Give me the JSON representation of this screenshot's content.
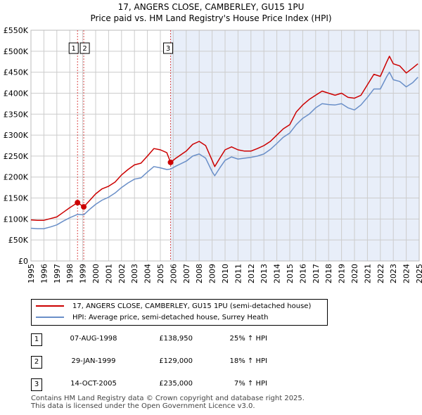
{
  "title_line1": "17, ANGERS CLOSE, CAMBERLEY, GU15 1PU",
  "title_line2": "Price paid vs. HM Land Registry's House Price Index (HPI)",
  "colors": {
    "property": "#cc0000",
    "hpi": "#6a8fc8",
    "shade": "#e8eef9",
    "marker_line": "#cc0000",
    "grid": "#cccccc"
  },
  "legend": {
    "property_label": "17, ANGERS CLOSE, CAMBERLEY, GU15 1PU (semi-detached house)",
    "hpi_label": "HPI: Average price, semi-detached house, Surrey Heath"
  },
  "sales": [
    {
      "num": "1",
      "date": "07-AUG-1998",
      "price": "£138,950",
      "hpi": "25% ↑ HPI"
    },
    {
      "num": "2",
      "date": "29-JAN-1999",
      "price": "£129,000",
      "hpi": "18% ↑ HPI"
    },
    {
      "num": "3",
      "date": "14-OCT-2005",
      "price": "£235,000",
      "hpi": "7% ↑ HPI"
    }
  ],
  "footer_line1": "Contains HM Land Registry data © Crown copyright and database right 2025.",
  "footer_line2": "This data is licensed under the Open Government Licence v3.0.",
  "chart_data": {
    "type": "line",
    "title": "17, ANGERS CLOSE, CAMBERLEY, GU15 1PU",
    "subtitle": "Price paid vs. HM Land Registry's House Price Index (HPI)",
    "xlabel": "",
    "ylabel": "",
    "xlim": [
      1995,
      2025
    ],
    "ylim": [
      0,
      550000
    ],
    "grid": true,
    "legend_position": "bottom",
    "x_ticks": [
      1995,
      1996,
      1997,
      1998,
      1999,
      2000,
      2001,
      2002,
      2003,
      2004,
      2005,
      2006,
      2007,
      2008,
      2009,
      2010,
      2011,
      2012,
      2013,
      2014,
      2015,
      2016,
      2017,
      2018,
      2019,
      2020,
      2021,
      2022,
      2023,
      2024,
      2025
    ],
    "y_ticks": [
      {
        "value": 0,
        "label": "£0"
      },
      {
        "value": 50000,
        "label": "£50K"
      },
      {
        "value": 100000,
        "label": "£100K"
      },
      {
        "value": 150000,
        "label": "£150K"
      },
      {
        "value": 200000,
        "label": "£200K"
      },
      {
        "value": 250000,
        "label": "£250K"
      },
      {
        "value": 300000,
        "label": "£300K"
      },
      {
        "value": 350000,
        "label": "£350K"
      },
      {
        "value": 400000,
        "label": "£400K"
      },
      {
        "value": 450000,
        "label": "£450K"
      },
      {
        "value": 500000,
        "label": "£500K"
      },
      {
        "value": 550000,
        "label": "£550K"
      }
    ],
    "shaded_from": 2005.79,
    "markers": [
      {
        "label": "1",
        "x": 1998.6,
        "y": 138950
      },
      {
        "label": "2",
        "x": 1999.08,
        "y": 129000
      },
      {
        "label": "3",
        "x": 2005.79,
        "y": 235000
      }
    ],
    "series": [
      {
        "name": "17, ANGERS CLOSE, CAMBERLEY, GU15 1PU (semi-detached house)",
        "points": [
          [
            1995,
            98000
          ],
          [
            1995.5,
            97000
          ],
          [
            1996,
            97000
          ],
          [
            1996.5,
            101000
          ],
          [
            1997,
            105000
          ],
          [
            1997.5,
            116000
          ],
          [
            1998,
            127000
          ],
          [
            1998.6,
            138950
          ],
          [
            1999.08,
            129000
          ],
          [
            1999.5,
            143000
          ],
          [
            2000,
            160000
          ],
          [
            2000.5,
            172000
          ],
          [
            2001,
            178000
          ],
          [
            2001.5,
            188000
          ],
          [
            2002,
            205000
          ],
          [
            2002.5,
            218000
          ],
          [
            2003,
            229000
          ],
          [
            2003.5,
            233000
          ],
          [
            2004,
            250000
          ],
          [
            2004.5,
            268000
          ],
          [
            2005,
            265000
          ],
          [
            2005.5,
            258000
          ],
          [
            2005.79,
            235000
          ],
          [
            2006.2,
            245000
          ],
          [
            2007,
            262000
          ],
          [
            2007.5,
            278000
          ],
          [
            2008,
            285000
          ],
          [
            2008.5,
            275000
          ],
          [
            2009,
            240000
          ],
          [
            2009.2,
            225000
          ],
          [
            2009.6,
            245000
          ],
          [
            2010,
            265000
          ],
          [
            2010.5,
            272000
          ],
          [
            2011,
            265000
          ],
          [
            2011.5,
            262000
          ],
          [
            2012,
            262000
          ],
          [
            2012.5,
            268000
          ],
          [
            2013,
            275000
          ],
          [
            2013.5,
            285000
          ],
          [
            2014,
            300000
          ],
          [
            2014.5,
            315000
          ],
          [
            2015,
            325000
          ],
          [
            2015.5,
            355000
          ],
          [
            2016,
            372000
          ],
          [
            2016.5,
            385000
          ],
          [
            2017,
            395000
          ],
          [
            2017.5,
            405000
          ],
          [
            2018,
            400000
          ],
          [
            2018.5,
            395000
          ],
          [
            2019,
            400000
          ],
          [
            2019.5,
            390000
          ],
          [
            2020,
            388000
          ],
          [
            2020.5,
            395000
          ],
          [
            2021,
            420000
          ],
          [
            2021.5,
            445000
          ],
          [
            2022,
            440000
          ],
          [
            2022.5,
            475000
          ],
          [
            2022.7,
            488000
          ],
          [
            2023,
            470000
          ],
          [
            2023.5,
            465000
          ],
          [
            2024,
            448000
          ],
          [
            2024.5,
            460000
          ],
          [
            2024.9,
            470000
          ]
        ]
      },
      {
        "name": "HPI: Average price, semi-detached house, Surrey Heath",
        "points": [
          [
            1995,
            78000
          ],
          [
            1995.5,
            77000
          ],
          [
            1996,
            77000
          ],
          [
            1996.5,
            81000
          ],
          [
            1997,
            86000
          ],
          [
            1997.5,
            95000
          ],
          [
            1998,
            103000
          ],
          [
            1998.6,
            111000
          ],
          [
            1999.08,
            110000
          ],
          [
            1999.5,
            122000
          ],
          [
            2000,
            135000
          ],
          [
            2000.5,
            145000
          ],
          [
            2001,
            152000
          ],
          [
            2001.5,
            162000
          ],
          [
            2002,
            175000
          ],
          [
            2002.5,
            186000
          ],
          [
            2003,
            195000
          ],
          [
            2003.5,
            198000
          ],
          [
            2004,
            212000
          ],
          [
            2004.5,
            225000
          ],
          [
            2005,
            222000
          ],
          [
            2005.5,
            218000
          ],
          [
            2005.79,
            219000
          ],
          [
            2006.2,
            226000
          ],
          [
            2007,
            238000
          ],
          [
            2007.5,
            250000
          ],
          [
            2008,
            255000
          ],
          [
            2008.5,
            245000
          ],
          [
            2009,
            213000
          ],
          [
            2009.2,
            203000
          ],
          [
            2009.6,
            222000
          ],
          [
            2010,
            240000
          ],
          [
            2010.5,
            248000
          ],
          [
            2011,
            243000
          ],
          [
            2011.5,
            245000
          ],
          [
            2012,
            247000
          ],
          [
            2012.5,
            250000
          ],
          [
            2013,
            255000
          ],
          [
            2013.5,
            266000
          ],
          [
            2014,
            280000
          ],
          [
            2014.5,
            295000
          ],
          [
            2015,
            305000
          ],
          [
            2015.5,
            325000
          ],
          [
            2016,
            340000
          ],
          [
            2016.5,
            350000
          ],
          [
            2017,
            365000
          ],
          [
            2017.5,
            375000
          ],
          [
            2018,
            373000
          ],
          [
            2018.5,
            372000
          ],
          [
            2019,
            375000
          ],
          [
            2019.5,
            365000
          ],
          [
            2020,
            360000
          ],
          [
            2020.5,
            372000
          ],
          [
            2021,
            390000
          ],
          [
            2021.5,
            410000
          ],
          [
            2022,
            410000
          ],
          [
            2022.5,
            440000
          ],
          [
            2022.7,
            450000
          ],
          [
            2023,
            432000
          ],
          [
            2023.5,
            428000
          ],
          [
            2024,
            415000
          ],
          [
            2024.5,
            425000
          ],
          [
            2024.9,
            438000
          ]
        ]
      }
    ]
  }
}
